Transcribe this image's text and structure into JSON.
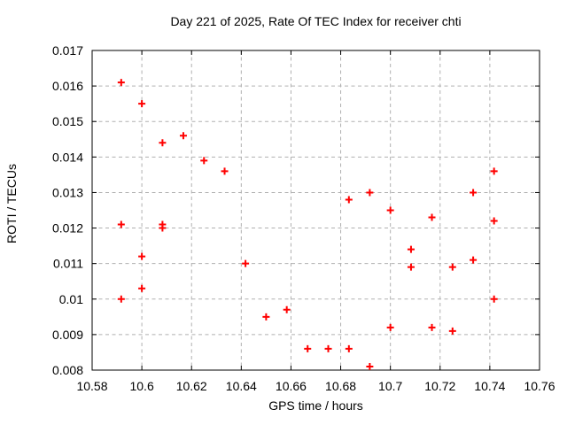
{
  "chart_data": {
    "type": "scatter",
    "title": "Day 221 of 2025, Rate Of TEC Index for receiver chti",
    "xlabel": "GPS time / hours",
    "ylabel": "ROTI / TECUs",
    "xlim": [
      10.58,
      10.76
    ],
    "ylim": [
      0.008,
      0.017
    ],
    "grid": true,
    "legend": false,
    "xticks": {
      "values": [
        10.58,
        10.6,
        10.62,
        10.64,
        10.66,
        10.68,
        10.7,
        10.72,
        10.74,
        10.76
      ],
      "labels": [
        "10.58",
        "10.6",
        "10.62",
        "10.64",
        "10.66",
        "10.68",
        "10.7",
        "10.72",
        "10.74",
        "10.76"
      ]
    },
    "yticks": {
      "values": [
        0.008,
        0.009,
        0.01,
        0.011,
        0.012,
        0.013,
        0.014,
        0.015,
        0.016,
        0.017
      ],
      "labels": [
        "0.008",
        "0.009",
        "0.01",
        "0.011",
        "0.012",
        "0.013",
        "0.014",
        "0.015",
        "0.016",
        "0.017"
      ]
    },
    "marker": {
      "shape": "plus",
      "color": "#ff0000",
      "size": 8,
      "stroke_width": 2
    },
    "colors": {
      "background": "#ffffff",
      "border": "#000000",
      "grid": "#b0b0b0",
      "text": "#000000"
    },
    "points": [
      [
        10.5917,
        0.0161
      ],
      [
        10.5917,
        0.0121
      ],
      [
        10.5917,
        0.01
      ],
      [
        10.6,
        0.0155
      ],
      [
        10.6,
        0.0112
      ],
      [
        10.6,
        0.0103
      ],
      [
        10.6083,
        0.0144
      ],
      [
        10.6083,
        0.0121
      ],
      [
        10.6083,
        0.012
      ],
      [
        10.6167,
        0.0146
      ],
      [
        10.625,
        0.0139
      ],
      [
        10.6333,
        0.0136
      ],
      [
        10.6417,
        0.011
      ],
      [
        10.65,
        0.0095
      ],
      [
        10.6583,
        0.0097
      ],
      [
        10.6667,
        0.0086
      ],
      [
        10.675,
        0.0086
      ],
      [
        10.6833,
        0.0128
      ],
      [
        10.6833,
        0.0086
      ],
      [
        10.6917,
        0.013
      ],
      [
        10.6917,
        0.0081
      ],
      [
        10.7,
        0.0125
      ],
      [
        10.7,
        0.0092
      ],
      [
        10.7083,
        0.0114
      ],
      [
        10.7083,
        0.0109
      ],
      [
        10.7167,
        0.0123
      ],
      [
        10.7167,
        0.0092
      ],
      [
        10.725,
        0.0109
      ],
      [
        10.725,
        0.0091
      ],
      [
        10.7333,
        0.013
      ],
      [
        10.7333,
        0.0111
      ],
      [
        10.7417,
        0.0136
      ],
      [
        10.7417,
        0.0122
      ],
      [
        10.7417,
        0.01
      ]
    ]
  }
}
